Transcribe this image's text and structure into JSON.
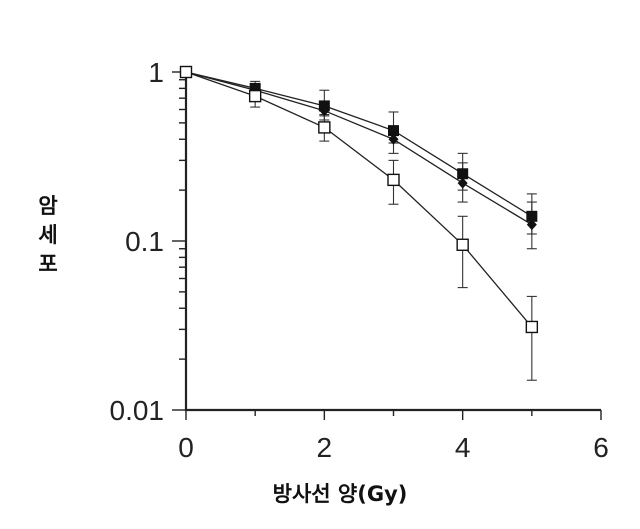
{
  "chart_data": {
    "type": "line",
    "title": "",
    "xlabel": "방사선 양(Gy)",
    "ylabel": "암세포",
    "xlim": [
      0,
      6
    ],
    "ylim": [
      0.01,
      1
    ],
    "yscale": "log",
    "grid": false,
    "legend": "none",
    "x_ticks": [
      "0",
      "2",
      "4",
      "6"
    ],
    "y_ticks": [
      "1",
      "0.1",
      "0.01"
    ],
    "x_tick_values": [
      0,
      2,
      4,
      6
    ],
    "y_tick_values": [
      1,
      0.1,
      0.01
    ],
    "x": [
      0,
      1,
      2,
      3,
      4,
      5
    ],
    "series": [
      {
        "marker": "filled-square",
        "values": [
          1,
          0.8,
          0.63,
          0.45,
          0.25,
          0.14
        ],
        "err_upper": [
          1,
          0.88,
          0.78,
          0.58,
          0.33,
          0.19
        ],
        "err_lower": [
          1,
          0.72,
          0.55,
          0.38,
          0.2,
          0.11
        ]
      },
      {
        "marker": "filled-diamond",
        "values": [
          1,
          0.78,
          0.59,
          0.4,
          0.22,
          0.125
        ],
        "err_upper": [
          1,
          0.85,
          0.66,
          0.47,
          0.29,
          0.17
        ],
        "err_lower": [
          1,
          0.71,
          0.52,
          0.33,
          0.17,
          0.09
        ]
      },
      {
        "marker": "open-square",
        "values": [
          1,
          0.72,
          0.47,
          0.23,
          0.095,
          0.031
        ],
        "err_upper": [
          1,
          0.82,
          0.56,
          0.3,
          0.14,
          0.047
        ],
        "err_lower": [
          1,
          0.62,
          0.39,
          0.165,
          0.053,
          0.015
        ]
      }
    ],
    "colors": {
      "ink": "#222222",
      "background": "#ffffff"
    }
  }
}
